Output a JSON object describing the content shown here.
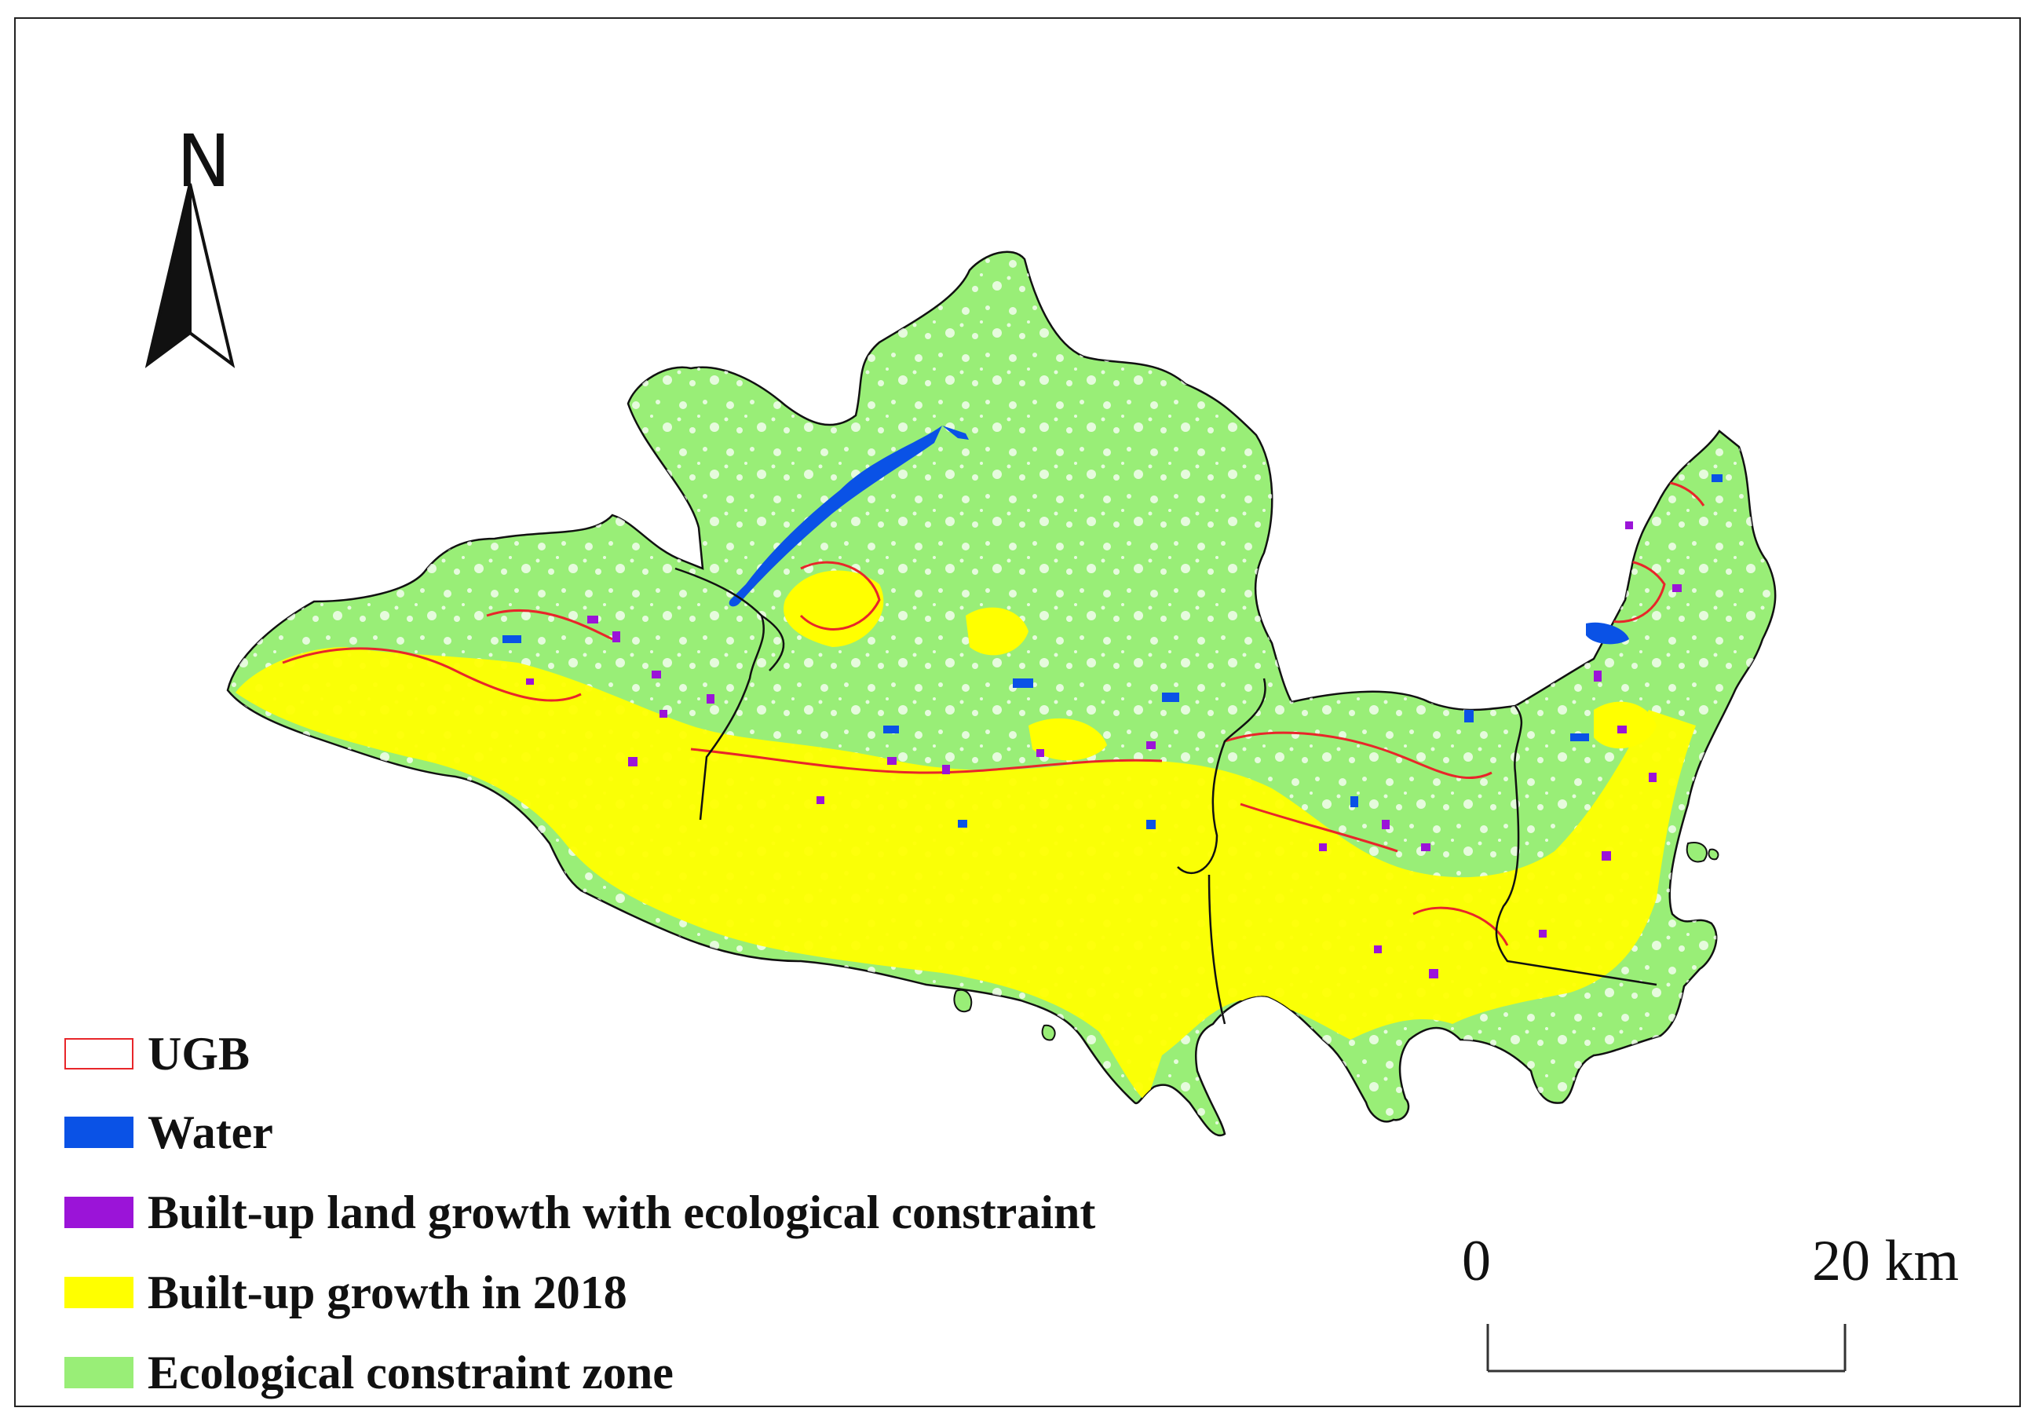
{
  "north_arrow": {
    "label": "N"
  },
  "legend": {
    "items": [
      {
        "key": "ugb",
        "label": "UGB",
        "style": "outline",
        "color": "#e8262a"
      },
      {
        "key": "water",
        "label": "Water",
        "style": "fill",
        "color": "#0a52e6"
      },
      {
        "key": "builtup_eco",
        "label": "Built-up land growth with ecological constraint",
        "style": "fill",
        "color": "#9b14d8"
      },
      {
        "key": "builtup_2018",
        "label": "Built-up growth in 2018",
        "style": "fill",
        "color": "#ffff00"
      },
      {
        "key": "eco_zone",
        "label": "Ecological constraint zone",
        "style": "fill",
        "color": "#99ee77"
      }
    ]
  },
  "scale_bar": {
    "start_label": "0",
    "end_label": "20 km"
  },
  "colors": {
    "land": "#99ee77",
    "water": "#0a52e6",
    "builtup": "#ffff00",
    "builtup_eco": "#9b14d8",
    "ugb": "#e8262a",
    "boundary": "#111111"
  }
}
